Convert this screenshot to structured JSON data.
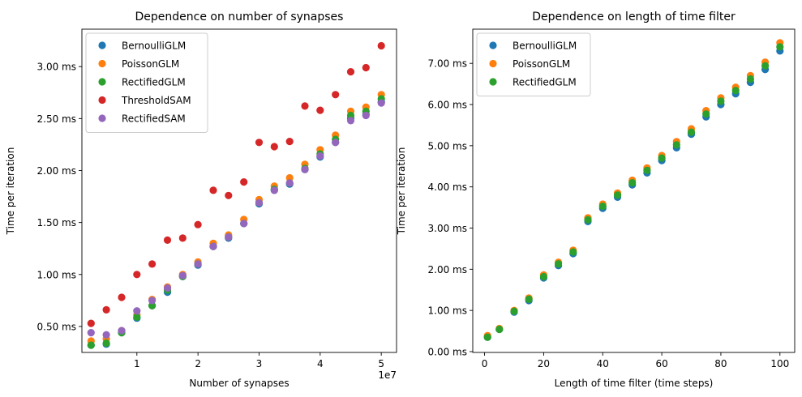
{
  "chart_data": [
    {
      "type": "scatter",
      "title": "Dependence on number of synapses",
      "xlabel": "Number of synapses",
      "ylabel": "Time per iteration",
      "x_offset_label": "1e7",
      "xlim": [
        1000000,
        52500000
      ],
      "ylim": [
        0.25,
        3.36
      ],
      "xticks": [
        10000000,
        20000000,
        30000000,
        40000000,
        50000000
      ],
      "xtick_labels": [
        "1",
        "2",
        "3",
        "4",
        "5"
      ],
      "yticks": [
        0.5,
        1.0,
        1.5,
        2.0,
        2.5,
        3.0
      ],
      "ytick_labels": [
        "0.50 ms",
        "1.00 ms",
        "1.50 ms",
        "2.00 ms",
        "2.50 ms",
        "3.00 ms"
      ],
      "grid": false,
      "legend_position": "top-left",
      "x": [
        2500000,
        5000000,
        7500000,
        10000000,
        12500000,
        15000000,
        17500000,
        20000000,
        22500000,
        25000000,
        27500000,
        30000000,
        32500000,
        35000000,
        37500000,
        40000000,
        42500000,
        45000000,
        47500000,
        50000000
      ],
      "series": [
        {
          "name": "BernoulliGLM",
          "color": "#1f77b4",
          "values": [
            0.32,
            0.33,
            0.44,
            0.58,
            0.7,
            0.83,
            0.98,
            1.09,
            1.27,
            1.35,
            1.49,
            1.68,
            1.81,
            1.87,
            2.01,
            2.13,
            2.27,
            2.5,
            2.54,
            2.66
          ]
        },
        {
          "name": "PoissonGLM",
          "color": "#ff7f0e",
          "values": [
            0.36,
            0.38,
            0.46,
            0.61,
            0.76,
            0.88,
            1.0,
            1.12,
            1.3,
            1.38,
            1.53,
            1.72,
            1.85,
            1.93,
            2.06,
            2.2,
            2.34,
            2.57,
            2.61,
            2.73
          ]
        },
        {
          "name": "RectifiedGLM",
          "color": "#2ca02c",
          "values": [
            0.32,
            0.34,
            0.44,
            0.59,
            0.7,
            0.85,
            0.98,
            1.1,
            1.27,
            1.36,
            1.49,
            1.69,
            1.82,
            1.88,
            2.02,
            2.16,
            2.3,
            2.53,
            2.57,
            2.69
          ]
        },
        {
          "name": "ThresholdSAM",
          "color": "#d62728",
          "values": [
            0.53,
            0.66,
            0.78,
            1.0,
            1.1,
            1.33,
            1.35,
            1.48,
            1.81,
            1.76,
            1.89,
            2.27,
            2.23,
            2.28,
            2.62,
            2.58,
            2.73,
            2.95,
            2.99,
            3.2
          ]
        },
        {
          "name": "RectifiedSAM",
          "color": "#9467bd",
          "values": [
            0.44,
            0.42,
            0.46,
            0.65,
            0.75,
            0.87,
            0.99,
            1.1,
            1.27,
            1.36,
            1.49,
            1.69,
            1.81,
            1.88,
            2.01,
            2.14,
            2.27,
            2.48,
            2.53,
            2.65
          ]
        }
      ]
    },
    {
      "type": "scatter",
      "title": "Dependence on length of time filter",
      "xlabel": "Length of time filter (time steps)",
      "ylabel": "Time per iteration",
      "x_offset_label": "",
      "xlim": [
        -4.0,
        105.0
      ],
      "ylim": [
        -0.02,
        7.83
      ],
      "xticks": [
        0,
        20,
        40,
        60,
        80,
        100
      ],
      "xtick_labels": [
        "0",
        "20",
        "40",
        "60",
        "80",
        "100"
      ],
      "yticks": [
        0,
        1,
        2,
        3,
        4,
        5,
        6,
        7
      ],
      "ytick_labels": [
        "0.00 ms",
        "1.00 ms",
        "2.00 ms",
        "3.00 ms",
        "4.00 ms",
        "5.00 ms",
        "6.00 ms",
        "7.00 ms"
      ],
      "grid": false,
      "legend_position": "top-left",
      "x": [
        1,
        5,
        10,
        15,
        20,
        25,
        30,
        35,
        40,
        45,
        50,
        55,
        60,
        65,
        70,
        75,
        80,
        85,
        90,
        95,
        100
      ],
      "series": [
        {
          "name": "BernoulliGLM",
          "color": "#1f77b4",
          "values": [
            0.35,
            0.54,
            0.96,
            1.24,
            1.79,
            2.09,
            2.38,
            3.16,
            3.48,
            3.75,
            4.05,
            4.34,
            4.64,
            4.95,
            5.28,
            5.7,
            6.0,
            6.26,
            6.54,
            6.85,
            7.3
          ]
        },
        {
          "name": "PoissonGLM",
          "color": "#ff7f0e",
          "values": [
            0.39,
            0.56,
            1.0,
            1.3,
            1.86,
            2.17,
            2.46,
            3.25,
            3.58,
            3.85,
            4.16,
            4.46,
            4.76,
            5.1,
            5.41,
            5.85,
            6.16,
            6.42,
            6.7,
            7.03,
            7.5
          ]
        },
        {
          "name": "RectifiedGLM",
          "color": "#2ca02c",
          "values": [
            0.35,
            0.54,
            0.98,
            1.27,
            1.82,
            2.13,
            2.42,
            3.2,
            3.53,
            3.8,
            4.1,
            4.4,
            4.7,
            5.02,
            5.33,
            5.77,
            6.08,
            6.34,
            6.62,
            6.94,
            7.4
          ]
        }
      ]
    }
  ]
}
